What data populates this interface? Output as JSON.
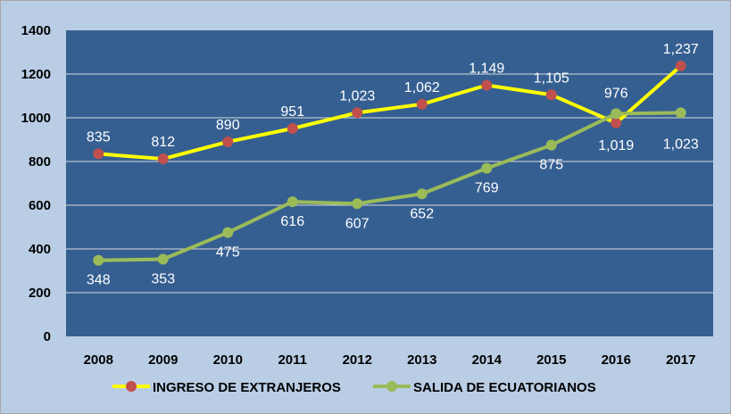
{
  "chart_data": {
    "type": "line",
    "title": "",
    "xlabel": "",
    "ylabel": "",
    "categories": [
      "2008",
      "2009",
      "2010",
      "2011",
      "2012",
      "2013",
      "2014",
      "2015",
      "2016",
      "2017"
    ],
    "ylim": [
      0,
      1400
    ],
    "yticks": [
      0,
      200,
      400,
      600,
      800,
      1000,
      1200,
      1400
    ],
    "grid": true,
    "legend_position": "bottom",
    "series": [
      {
        "name": "INGRESO DE EXTRANJEROS",
        "line_color": "#ffff00",
        "marker_color": "#c0504d",
        "values": [
          835,
          812,
          890,
          951,
          1023,
          1062,
          1149,
          1105,
          976,
          1237
        ],
        "labels": [
          "835",
          "812",
          "890",
          "951",
          "1,023",
          "1,062",
          "1,149",
          "1,105",
          "976",
          "1,237"
        ],
        "label_side": [
          "above",
          "above",
          "above",
          "above",
          "above",
          "above",
          "above",
          "above",
          "above",
          "above"
        ]
      },
      {
        "name": "SALIDA DE ECUATORIANOS",
        "line_color": "#9bbb59",
        "marker_color": "#9bbb59",
        "values": [
          348,
          353,
          475,
          616,
          607,
          652,
          769,
          875,
          1019,
          1023
        ],
        "labels": [
          "348",
          "353",
          "475",
          "616",
          "607",
          "652",
          "769",
          "875",
          "1,019",
          "1,023"
        ],
        "label_side": [
          "below",
          "below",
          "below",
          "below",
          "below",
          "below",
          "below",
          "below",
          "below",
          "below"
        ]
      }
    ],
    "colors": {
      "plot_bg": "#355f91",
      "outer_bg": "#b9cde5",
      "grid": "#d9d9d9"
    }
  }
}
